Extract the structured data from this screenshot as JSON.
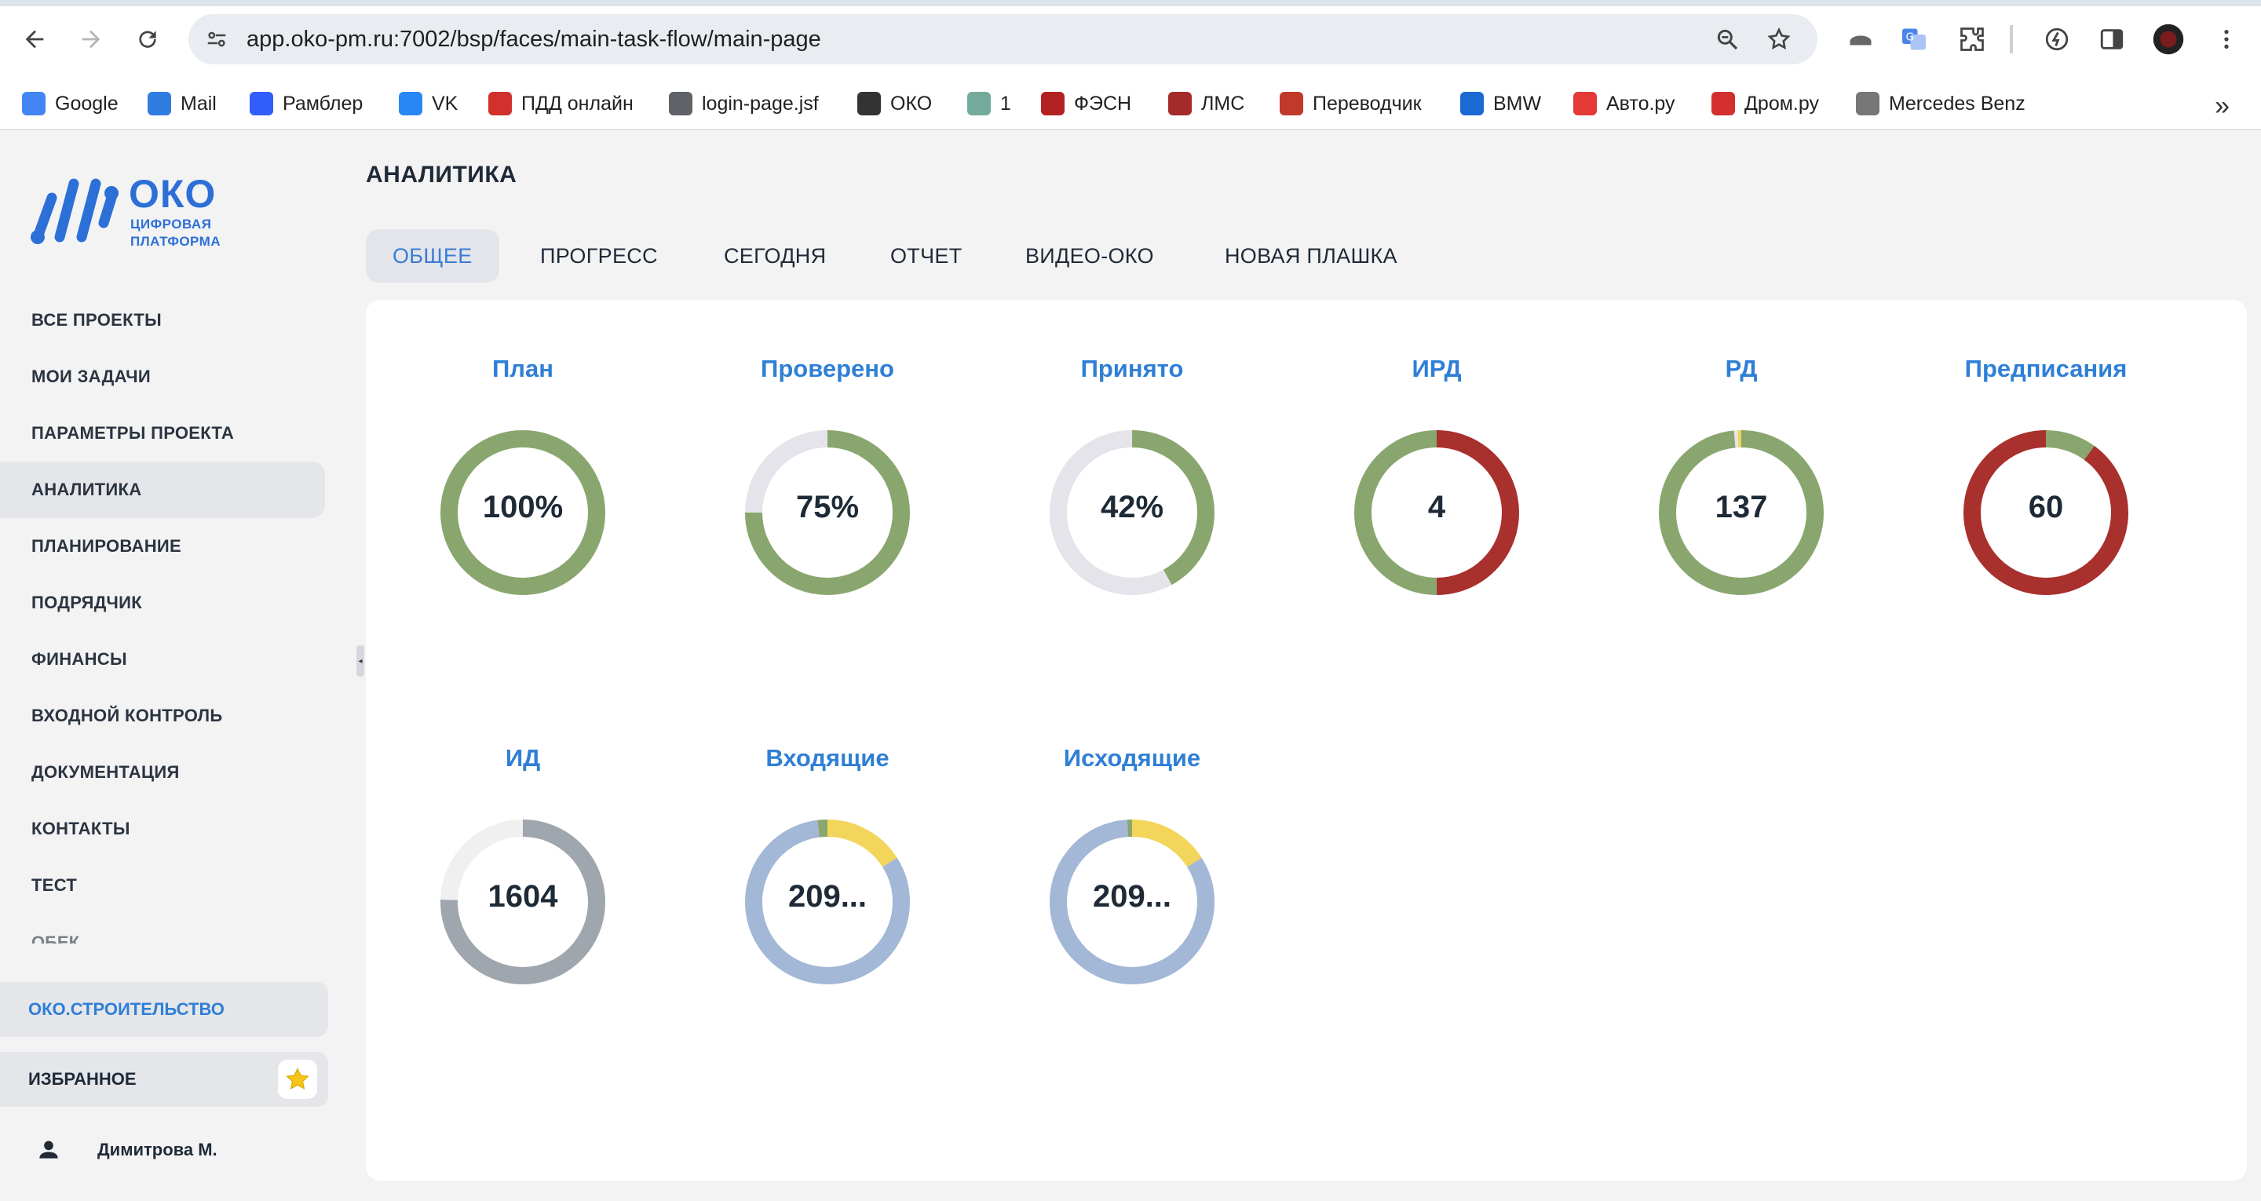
{
  "browser": {
    "url": "app.oko-pm.ru:7002/bsp/faces/main-task-flow/main-page",
    "bookmarks": [
      {
        "label": "Google",
        "icon": "google-icon",
        "color": "#4285f4"
      },
      {
        "label": "Mail",
        "icon": "mail-icon",
        "color": "#2f7de1"
      },
      {
        "label": "Рамблер",
        "icon": "rambler-icon",
        "color": "#315efb"
      },
      {
        "label": "VK",
        "icon": "vk-icon",
        "color": "#2787f5"
      },
      {
        "label": "ПДД онлайн",
        "icon": "pdd-icon",
        "color": "#d0312d"
      },
      {
        "label": "login-page.jsf",
        "icon": "globe-icon",
        "color": "#5f6368"
      },
      {
        "label": "ОКО",
        "icon": "oko-icon",
        "color": "#333333"
      },
      {
        "label": "1",
        "icon": "chatgpt-icon",
        "color": "#74aa9c"
      },
      {
        "label": "ФЭСН",
        "icon": "fesn-icon",
        "color": "#b22222"
      },
      {
        "label": "ЛМС",
        "icon": "lms-icon",
        "color": "#a52a2a"
      },
      {
        "label": "Переводчик",
        "icon": "translator-icon",
        "color": "#c0392b"
      },
      {
        "label": "BMW",
        "icon": "bmw-icon",
        "color": "#1c69d4"
      },
      {
        "label": "Авто.ру",
        "icon": "autoru-icon",
        "color": "#e53935"
      },
      {
        "label": "Дром.ру",
        "icon": "drom-icon",
        "color": "#d32f2f"
      },
      {
        "label": "Mercedes Benz",
        "icon": "mercedes-icon",
        "color": "#777777"
      }
    ]
  },
  "sidebar": {
    "logo": {
      "word": "ОКО",
      "sub1": "ЦИФРОВАЯ",
      "sub2": "ПЛАТФОРМА"
    },
    "items": [
      {
        "label": "ВСЕ ПРОЕКТЫ"
      },
      {
        "label": "МОИ ЗАДАЧИ"
      },
      {
        "label": "ПАРАМЕТРЫ ПРОЕКТА"
      },
      {
        "label": "АНАЛИТИКА",
        "active": true
      },
      {
        "label": "ПЛАНИРОВАНИЕ"
      },
      {
        "label": "ПОДРЯДЧИК"
      },
      {
        "label": "ФИНАНСЫ"
      },
      {
        "label": "ВХОДНОЙ КОНТРОЛЬ"
      },
      {
        "label": "ДОКУМЕНТАЦИЯ"
      },
      {
        "label": "КОНТАКТЫ"
      },
      {
        "label": "ТЕСТ"
      }
    ],
    "truncated_item": "ОБЕК",
    "platform_label": "ОКО.СТРОИТЕЛЬСТВО",
    "favorites_label": "ИЗБРАННОЕ",
    "user_name": "Димитрова М."
  },
  "main": {
    "title": "АНАЛИТИКА",
    "tabs": [
      {
        "label": "ОБЩЕЕ",
        "active": true
      },
      {
        "label": "ПРОГРЕСС"
      },
      {
        "label": "СЕГОДНЯ"
      },
      {
        "label": "ОТЧЕТ"
      },
      {
        "label": "ВИДЕО-ОКО"
      },
      {
        "label": "НОВАЯ ПЛАШКА"
      }
    ]
  },
  "colors": {
    "accent": "#2f7fd6",
    "green": "#8aa66f",
    "red": "#a8302d",
    "grey_track": "#e4e4ea",
    "slate": "#a0a6ad",
    "light_grey": "#f0f0f1",
    "blue": "#a3b7d6",
    "yellow": "#f2d55a"
  },
  "chart_data": [
    {
      "type": "pie",
      "title": "План",
      "center_label": "100%",
      "segments": [
        {
          "value": 100,
          "color": "#8aa66f"
        }
      ]
    },
    {
      "type": "pie",
      "title": "Проверено",
      "center_label": "75%",
      "segments": [
        {
          "value": 75,
          "color": "#8aa66f"
        },
        {
          "value": 25,
          "color": "#e4e4ea"
        }
      ]
    },
    {
      "type": "pie",
      "title": "Принято",
      "center_label": "42%",
      "segments": [
        {
          "value": 42,
          "color": "#8aa66f"
        },
        {
          "value": 58,
          "color": "#e4e4ea"
        }
      ]
    },
    {
      "type": "pie",
      "title": "ИРД",
      "center_label": "4",
      "segments": [
        {
          "value": 2,
          "color": "#a8302d"
        },
        {
          "value": 2,
          "color": "#8aa66f"
        }
      ]
    },
    {
      "type": "pie",
      "title": "РД",
      "center_label": "137",
      "segments": [
        {
          "value": 135,
          "color": "#8aa66f"
        },
        {
          "value": 1,
          "color": "#e4e4ea"
        },
        {
          "value": 1,
          "color": "#f2d55a"
        }
      ]
    },
    {
      "type": "pie",
      "title": "Предписания",
      "center_label": "60",
      "segments": [
        {
          "value": 6,
          "color": "#8aa66f"
        },
        {
          "value": 54,
          "color": "#a8302d"
        }
      ]
    },
    {
      "type": "pie",
      "title": "ИД",
      "center_label": "1604",
      "segments": [
        {
          "value": 1210,
          "color": "#a0a6ad"
        },
        {
          "value": 394,
          "color": "#f0f0f1"
        }
      ]
    },
    {
      "type": "pie",
      "title": "Входящие",
      "center_label": "209...",
      "segments": [
        {
          "value": 16,
          "color": "#f2d55a"
        },
        {
          "value": 82,
          "color": "#a3b7d6"
        },
        {
          "value": 2,
          "color": "#8aa66f"
        }
      ]
    },
    {
      "type": "pie",
      "title": "Исходящие",
      "center_label": "209...",
      "segments": [
        {
          "value": 16,
          "color": "#f2d55a"
        },
        {
          "value": 83,
          "color": "#a3b7d6"
        },
        {
          "value": 1,
          "color": "#8aa66f"
        }
      ]
    }
  ]
}
